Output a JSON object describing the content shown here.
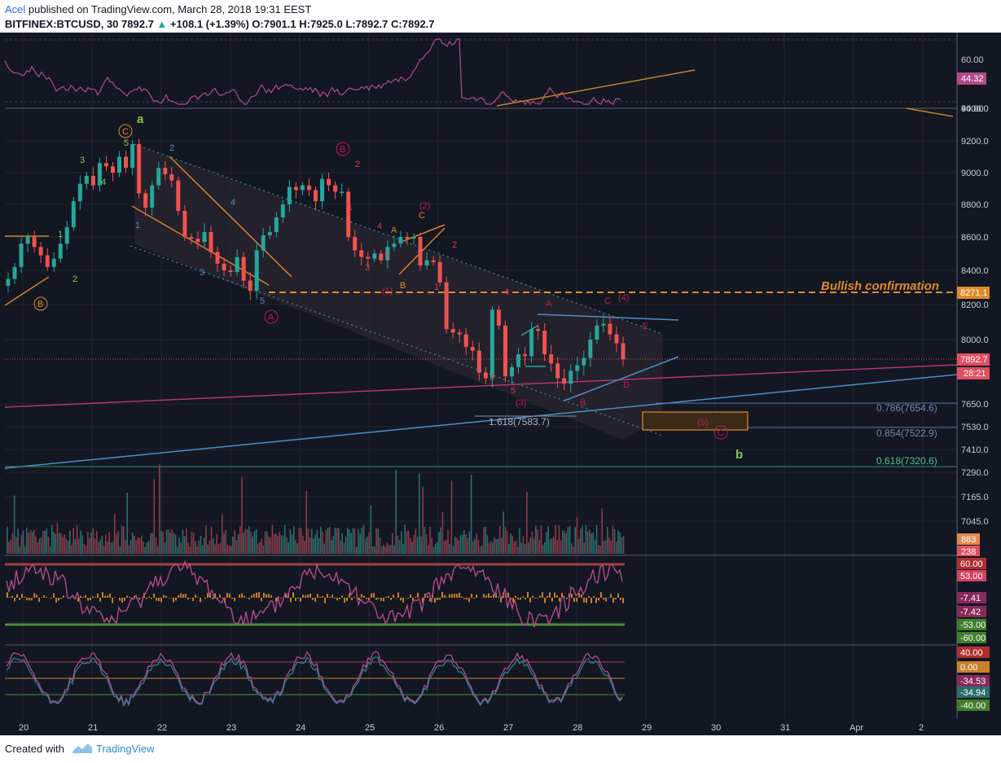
{
  "header": {
    "author": "Acel",
    "published": "published on TradingView.com, March 28, 2018 19:31 EEST",
    "symbol": "BITFINEX:BTCUSD, 30",
    "last": "7892.7",
    "arrow": "▲",
    "change": "+108.1 (+1.39%)",
    "ohlc_o_label": "O:",
    "ohlc_o": "7901.1",
    "ohlc_h_label": "H:",
    "ohlc_h": "7925.0",
    "ohlc_l_label": "L:",
    "ohlc_l": "7892.7",
    "ohlc_c_label": "C:",
    "ohlc_c": "7892.7"
  },
  "footer": {
    "created": "Created with",
    "brand": "TradingView"
  },
  "colors": {
    "bg": "#131722",
    "grid": "#232632",
    "up": "#26a69a",
    "down": "#ef5350",
    "accent_orange": "#f7931a",
    "wave_pink": "#c2185b",
    "wave_green": "#8bc34a",
    "trend_blue": "#4a8fc4",
    "rsi": "#b24a8a"
  },
  "chart_data": {
    "type": "candlestick",
    "title": "BITFINEX:BTCUSD, 30",
    "x_labels": [
      "20",
      "21",
      "22",
      "23",
      "24",
      "25",
      "26",
      "27",
      "28",
      "29",
      "30",
      "31",
      "Apr",
      "2"
    ],
    "price_axis": [
      "9400.0",
      "9200.0",
      "9000.0",
      "8800.0",
      "8600.0",
      "8400.0",
      "8200.0",
      "8000.0",
      "7650.0",
      "7530.0",
      "7410.0",
      "7290.0",
      "7165.0",
      "7045.0"
    ],
    "price_badges": [
      "8271.1",
      "7892.7",
      "28:21"
    ],
    "close_series": [
      8350,
      8420,
      8560,
      8600,
      8540,
      8490,
      8420,
      8470,
      8560,
      8660,
      8820,
      8930,
      8980,
      8920,
      9060,
      9040,
      9000,
      9100,
      9030,
      9180,
      8870,
      8780,
      8920,
      9030,
      8990,
      8950,
      8760,
      8600,
      8590,
      8570,
      8630,
      8510,
      8440,
      8400,
      8390,
      8480,
      8340,
      8280,
      8520,
      8610,
      8630,
      8720,
      8800,
      8910,
      8890,
      8920,
      8890,
      8820,
      8960,
      8920,
      8880,
      8880,
      8600,
      8520,
      8480,
      8470,
      8500,
      8460,
      8540,
      8560,
      8600,
      8590,
      8600,
      8430,
      8460,
      8450,
      8330,
      8060,
      8040,
      8030,
      7960,
      7940,
      7820,
      7790,
      8170,
      8080,
      7800,
      7850,
      7920,
      7910,
      8060,
      8050,
      7920,
      7870,
      7790,
      7760,
      7830,
      7860,
      7900,
      8000,
      8080,
      8090,
      8030,
      7980,
      7892.7
    ],
    "rsi": {
      "levels": [
        "60.00",
        "40.00"
      ],
      "value": "44.32"
    },
    "volume": {
      "labels": [
        "883",
        "238"
      ]
    },
    "macd": {
      "values": [
        "60.00",
        "53.00",
        "-7.41",
        "-7.42",
        "-53.00",
        "-60.00"
      ]
    },
    "stoch": {
      "values": [
        "40.00",
        "0.00",
        "-34.53",
        "-34.94",
        "-40.00"
      ]
    },
    "fib_levels": [
      {
        "label": "0.786(7654.6)",
        "price": 7654.6
      },
      {
        "label": "0.854(7522.9)",
        "price": 7522.9
      },
      {
        "label": "0.618(7320.6)",
        "price": 7320.6
      },
      {
        "label": "1.618(7583.7)",
        "price": 7583.7
      }
    ],
    "annotations": {
      "bullish": "Bullish confirmation",
      "circle_c": "C",
      "circle_b": "B",
      "circle_a": "A",
      "wave_a": "a",
      "wave_b": "b",
      "w5": "(5)",
      "w4": "(4)",
      "w3": "(3)",
      "w2": "(2)",
      "w1": "(1)",
      "n1": "1",
      "n2": "2",
      "n3": "3",
      "n4": "4",
      "n5": "5",
      "lA": "A",
      "lB": "B",
      "lC": "C",
      "lD": "D",
      "lE": "E"
    }
  }
}
